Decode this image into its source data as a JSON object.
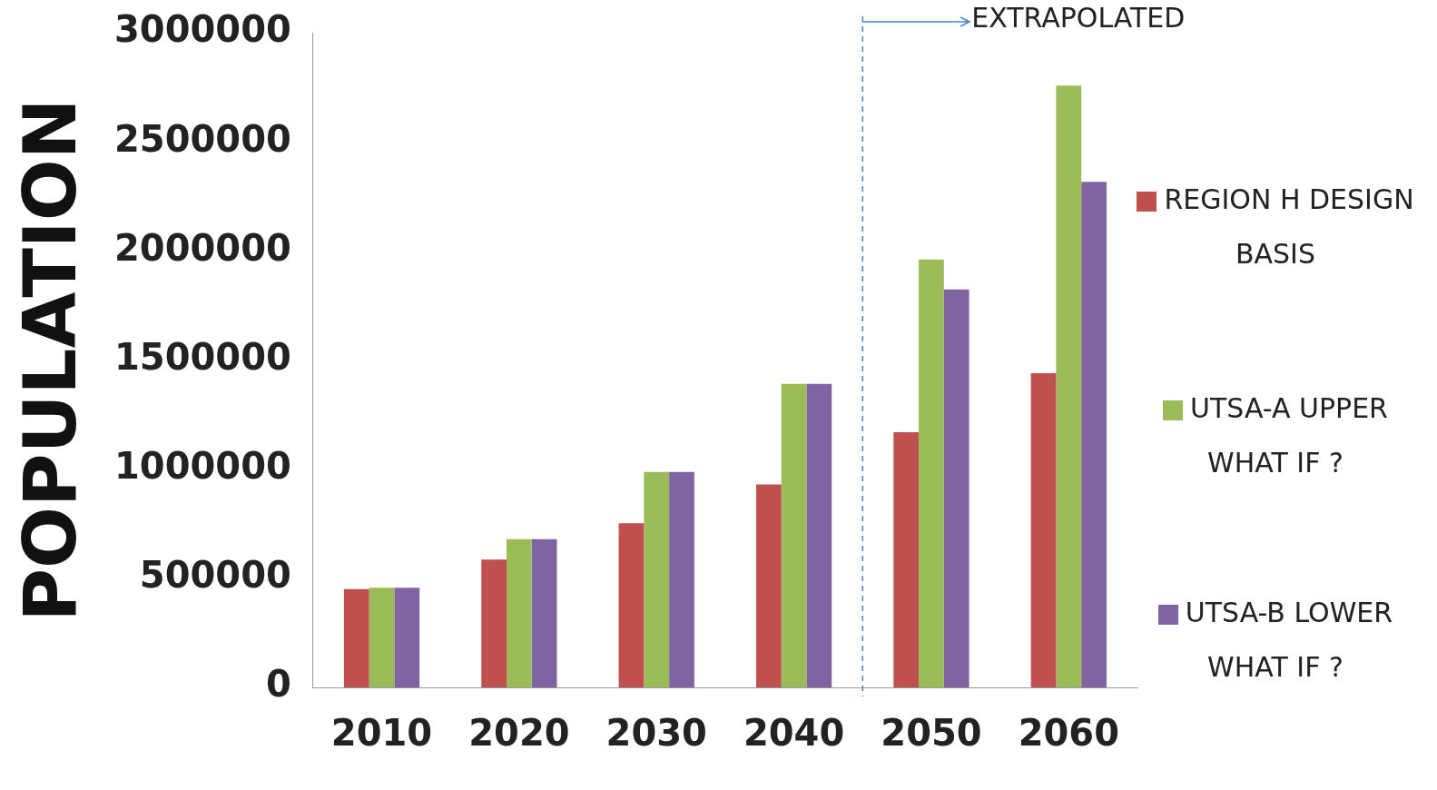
{
  "chart_data": {
    "type": "bar",
    "ylabel": "POPULATION",
    "x": [
      2010,
      2020,
      2030,
      2040,
      2050,
      2060
    ],
    "xlim": [
      2005,
      2065
    ],
    "xticks": [
      2010,
      2020,
      2030,
      2040,
      2050,
      2060
    ],
    "ylim": [
      0,
      3000000
    ],
    "yticks": [
      0,
      500000,
      1000000,
      1500000,
      2000000,
      2500000,
      3000000
    ],
    "series": [
      {
        "name": "REGION H DESIGN BASIS",
        "color": "#c0504d",
        "values": [
          450000,
          586000,
          752000,
          930000,
          1169000,
          1440000
        ]
      },
      {
        "name": "UTSA-A UPPER WHAT IF ?",
        "color": "#9bbb59",
        "values": [
          457000,
          679000,
          987000,
          1391000,
          1961000,
          2758000
        ]
      },
      {
        "name": "UTSA-B LOWER WHAT IF ?",
        "color": "#8064a2",
        "values": [
          457000,
          679000,
          987000,
          1391000,
          1824000,
          2317000
        ]
      }
    ],
    "ref_lines": [
      {
        "axis": "x",
        "value": 2045,
        "label": "EXTRAPOLATED",
        "color": "#4f81bd",
        "line_style": "dashed"
      }
    ],
    "grid": false,
    "legend": "right"
  }
}
